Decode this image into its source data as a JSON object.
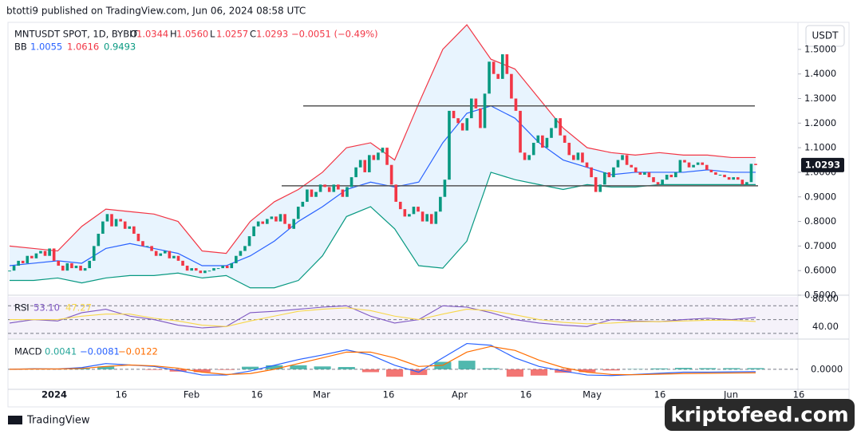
{
  "header": {
    "published": "btotti9 published on TradingView.com, Jun 06, 2024 08:58 UTC",
    "currency_button": "USDT",
    "footer_brand": "TradingView",
    "watermark": "kriptofeed.com"
  },
  "chart_data": {
    "type": "candlestick",
    "title": "MNTUSDT SPOT, 1D, BYBIT",
    "ohlc_legend": [
      {
        "key": "O",
        "text": "1.0344"
      },
      {
        "key": "H",
        "text": "1.0560"
      },
      {
        "key": "L",
        "text": "1.0257"
      },
      {
        "key": "C",
        "text": "1.0293"
      }
    ],
    "change_text": "−0.0051 (−0.49%)",
    "close": [
      0.6,
      0.62,
      0.64,
      0.63,
      0.66,
      0.65,
      0.67,
      0.68,
      0.66,
      0.69,
      0.64,
      0.62,
      0.6,
      0.63,
      0.61,
      0.62,
      0.6,
      0.61,
      0.64,
      0.7,
      0.75,
      0.8,
      0.83,
      0.78,
      0.81,
      0.8,
      0.77,
      0.78,
      0.75,
      0.72,
      0.7,
      0.7,
      0.68,
      0.66,
      0.67,
      0.68,
      0.65,
      0.66,
      0.64,
      0.62,
      0.6,
      0.61,
      0.6,
      0.59,
      0.6,
      0.6,
      0.61,
      0.61,
      0.62,
      0.61,
      0.63,
      0.66,
      0.68,
      0.7,
      0.74,
      0.78,
      0.8,
      0.79,
      0.81,
      0.82,
      0.8,
      0.83,
      0.79,
      0.77,
      0.81,
      0.86,
      0.88,
      0.93,
      0.9,
      0.92,
      0.95,
      0.94,
      0.92,
      0.95,
      0.93,
      0.9,
      0.94,
      0.98,
      1.02,
      1.05,
      1.0,
      1.07,
      1.05,
      1.08,
      1.1,
      1.03,
      0.95,
      0.88,
      0.85,
      0.82,
      0.83,
      0.86,
      0.84,
      0.8,
      0.83,
      0.79,
      0.84,
      0.9,
      0.97,
      1.25,
      1.22,
      1.2,
      1.17,
      1.22,
      1.3,
      1.26,
      1.18,
      1.32,
      1.45,
      1.4,
      1.38,
      1.48,
      1.4,
      1.3,
      1.25,
      1.08,
      1.05,
      1.07,
      1.12,
      1.15,
      1.1,
      1.14,
      1.18,
      1.22,
      1.15,
      1.12,
      1.07,
      1.05,
      1.08,
      1.04,
      1.02,
      0.98,
      0.92,
      0.95,
      1.0,
      0.98,
      1.02,
      1.05,
      1.07,
      1.03,
      1.02,
      1.0,
      0.99,
      1.0,
      0.98,
      0.96,
      0.95,
      0.97,
      0.99,
      0.98,
      1.0,
      1.05,
      1.04,
      1.02,
      1.03,
      1.04,
      1.03,
      1.01,
      1.0,
      0.99,
      0.99,
      0.98,
      0.97,
      0.98,
      0.97,
      0.95,
      0.96,
      1.0344,
      1.0293
    ],
    "up_color": "#089981",
    "down_color": "#f23645",
    "bb_label": "BB",
    "bb_series": [
      {
        "name": "1.0055",
        "color": "#2962ff",
        "values": [
          0.62,
          0.63,
          0.64,
          0.63,
          0.69,
          0.71,
          0.69,
          0.67,
          0.62,
          0.62,
          0.66,
          0.72,
          0.8,
          0.86,
          0.93,
          0.96,
          0.94,
          0.96,
          1.12,
          1.24,
          1.27,
          1.22,
          1.12,
          1.05,
          1.02,
          0.99,
          1.0,
          1.0,
          1.0,
          1.01,
          1.0,
          1.0
        ]
      },
      {
        "name": "1.0616",
        "color": "#f23645",
        "values": [
          0.7,
          0.69,
          0.68,
          0.78,
          0.85,
          0.84,
          0.83,
          0.8,
          0.68,
          0.67,
          0.8,
          0.88,
          0.93,
          1.0,
          1.1,
          1.12,
          1.05,
          1.28,
          1.5,
          1.6,
          1.46,
          1.42,
          1.3,
          1.18,
          1.1,
          1.08,
          1.07,
          1.08,
          1.07,
          1.07,
          1.06,
          1.06
        ]
      },
      {
        "name": "0.9493",
        "color": "#089981",
        "values": [
          0.56,
          0.56,
          0.57,
          0.55,
          0.57,
          0.58,
          0.58,
          0.59,
          0.57,
          0.58,
          0.53,
          0.53,
          0.56,
          0.66,
          0.82,
          0.86,
          0.77,
          0.62,
          0.61,
          0.72,
          1.0,
          0.97,
          0.95,
          0.93,
          0.95,
          0.94,
          0.94,
          0.95,
          0.95,
          0.95,
          0.95,
          0.95
        ]
      }
    ],
    "levels": [
      1.27,
      0.945
    ],
    "ylim": [
      0.5,
      1.61
    ],
    "yticks": [
      {
        "value": 1.5,
        "label": "1.5000"
      },
      {
        "value": 1.4,
        "label": "1.4000"
      },
      {
        "value": 1.3,
        "label": "1.3000"
      },
      {
        "value": 1.2,
        "label": "1.2000"
      },
      {
        "value": 1.1,
        "label": "1.1000"
      },
      {
        "value": 1.0,
        "label": "1.0000"
      },
      {
        "value": 0.9,
        "label": "0.9000"
      },
      {
        "value": 0.8,
        "label": "0.8000"
      },
      {
        "value": 0.7,
        "label": "0.7000"
      },
      {
        "value": 0.6,
        "label": "0.6000"
      },
      {
        "value": 0.5,
        "label": "0.5000"
      }
    ],
    "last_price": 1.0293,
    "xticks": [
      "2024",
      "16",
      "Feb",
      "16",
      "Mar",
      "16",
      "Apr",
      "16",
      "May",
      "16",
      "Jun",
      "16"
    ],
    "rsi": {
      "label": "RSI",
      "ylim": [
        23,
        83
      ],
      "yticks": [
        {
          "value": 80,
          "label": "80.00"
        },
        {
          "value": 40,
          "label": "40.00"
        }
      ],
      "bands": [
        70,
        50,
        30
      ],
      "series": [
        {
          "name": "53.10",
          "color": "#7e57c2",
          "values": [
            45,
            50,
            48,
            60,
            65,
            55,
            50,
            42,
            38,
            40,
            60,
            62,
            65,
            68,
            70,
            55,
            45,
            50,
            70,
            68,
            60,
            50,
            45,
            42,
            40,
            50,
            48,
            47,
            50,
            52,
            50,
            53.1
          ]
        },
        {
          "name": "47.27",
          "color": "#f7d74a",
          "values": [
            50,
            50,
            50,
            55,
            58,
            58,
            52,
            48,
            42,
            40,
            48,
            55,
            62,
            65,
            67,
            63,
            55,
            50,
            58,
            65,
            63,
            57,
            50,
            46,
            44,
            45,
            47,
            47,
            48,
            49,
            49,
            47.27
          ]
        }
      ]
    },
    "macd": {
      "label": "MACD",
      "ylim": [
        -0.07,
        0.1
      ],
      "yticks": [
        {
          "value": 0,
          "label": "0.0000"
        }
      ],
      "histogram": {
        "name": "0.0041",
        "color": "#26a69a",
        "neg_color": "#ef5350",
        "values": [
          0,
          0.001,
          0,
          0.003,
          0.01,
          0,
          -0.002,
          -0.008,
          -0.01,
          -0.002,
          0.009,
          0.014,
          0.014,
          0.01,
          0.008,
          -0.01,
          -0.026,
          -0.02,
          0.026,
          0.03,
          0.004,
          -0.026,
          -0.022,
          -0.012,
          -0.01,
          -0.004,
          0.001,
          0.003,
          0.005,
          0.004,
          0.004,
          0.0041
        ]
      },
      "series": [
        {
          "name": "−0.0081",
          "color": "#2962ff",
          "values": [
            0.0,
            0.002,
            0.001,
            0.006,
            0.02,
            0.015,
            0.01,
            -0.004,
            -0.02,
            -0.02,
            -0.006,
            0.014,
            0.034,
            0.05,
            0.068,
            0.05,
            0.014,
            -0.01,
            0.04,
            0.09,
            0.084,
            0.04,
            0.01,
            -0.006,
            -0.02,
            -0.022,
            -0.018,
            -0.014,
            -0.01,
            -0.01,
            -0.009,
            -0.0081
          ]
        },
        {
          "name": "−0.0122",
          "color": "#ff6d00",
          "values": [
            0.0,
            0.001,
            0.001,
            0.003,
            0.01,
            0.015,
            0.012,
            0.004,
            -0.01,
            -0.018,
            -0.015,
            0.0,
            0.02,
            0.04,
            0.06,
            0.06,
            0.04,
            0.01,
            0.014,
            0.06,
            0.08,
            0.066,
            0.032,
            0.006,
            -0.01,
            -0.018,
            -0.019,
            -0.017,
            -0.015,
            -0.014,
            -0.013,
            -0.0122
          ]
        }
      ]
    }
  }
}
